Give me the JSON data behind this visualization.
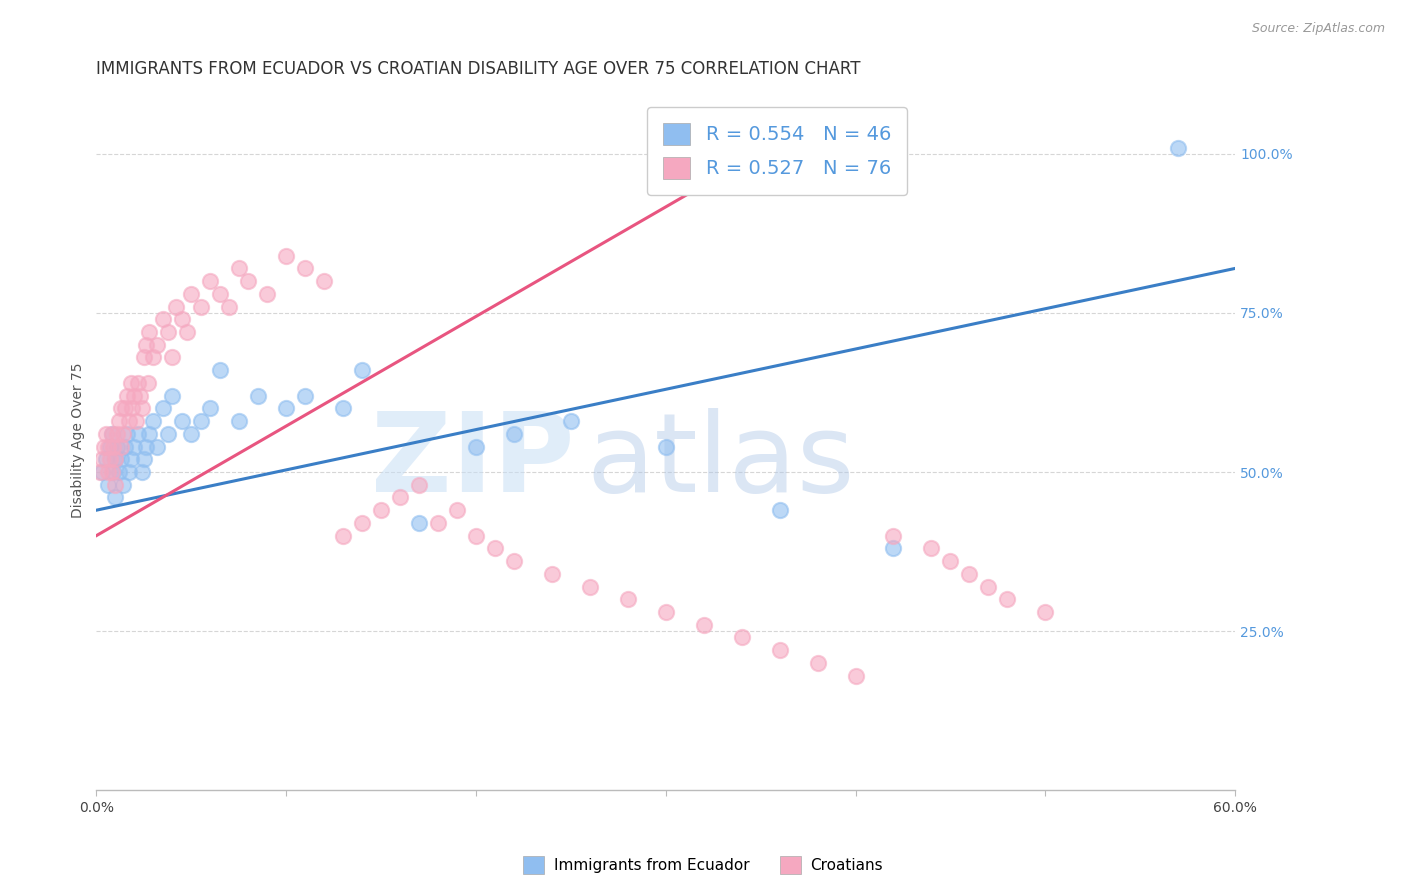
{
  "title": "IMMIGRANTS FROM ECUADOR VS CROATIAN DISABILITY AGE OVER 75 CORRELATION CHART",
  "source": "Source: ZipAtlas.com",
  "ylabel_label": "Disability Age Over 75",
  "x_min": 0.0,
  "x_max": 0.6,
  "y_min": 0.0,
  "y_max": 1.1,
  "x_ticks": [
    0.0,
    0.1,
    0.2,
    0.3,
    0.4,
    0.5,
    0.6
  ],
  "x_tick_labels": [
    "0.0%",
    "",
    "",
    "",
    "",
    "",
    "60.0%"
  ],
  "y_tick_labels": [
    "25.0%",
    "50.0%",
    "75.0%",
    "100.0%"
  ],
  "y_ticks": [
    0.25,
    0.5,
    0.75,
    1.0
  ],
  "blue_color": "#90BEF0",
  "pink_color": "#F5A8C0",
  "blue_line_color": "#3A7EC6",
  "pink_line_color": "#E85580",
  "R_blue": 0.554,
  "N_blue": 46,
  "R_pink": 0.527,
  "N_pink": 76,
  "legend_label_blue": "Immigrants from Ecuador",
  "legend_label_pink": "Croatians",
  "watermark_zip": "ZIP",
  "watermark_atlas": "atlas",
  "blue_trend_x0": 0.0,
  "blue_trend_x1": 0.6,
  "blue_trend_y0": 0.44,
  "blue_trend_y1": 0.82,
  "pink_trend_x0": 0.0,
  "pink_trend_x1": 0.36,
  "pink_trend_y0": 0.4,
  "pink_trend_y1": 1.02,
  "blue_scatter_x": [
    0.003,
    0.005,
    0.006,
    0.007,
    0.008,
    0.009,
    0.01,
    0.01,
    0.011,
    0.012,
    0.013,
    0.014,
    0.015,
    0.016,
    0.017,
    0.018,
    0.02,
    0.022,
    0.024,
    0.025,
    0.026,
    0.028,
    0.03,
    0.032,
    0.035,
    0.038,
    0.04,
    0.045,
    0.05,
    0.055,
    0.06,
    0.065,
    0.075,
    0.085,
    0.1,
    0.11,
    0.13,
    0.14,
    0.17,
    0.2,
    0.22,
    0.25,
    0.3,
    0.36,
    0.42,
    0.57
  ],
  "blue_scatter_y": [
    0.5,
    0.52,
    0.48,
    0.54,
    0.56,
    0.5,
    0.52,
    0.46,
    0.54,
    0.5,
    0.52,
    0.48,
    0.54,
    0.56,
    0.5,
    0.52,
    0.54,
    0.56,
    0.5,
    0.52,
    0.54,
    0.56,
    0.58,
    0.54,
    0.6,
    0.56,
    0.62,
    0.58,
    0.56,
    0.58,
    0.6,
    0.66,
    0.58,
    0.62,
    0.6,
    0.62,
    0.6,
    0.66,
    0.42,
    0.54,
    0.56,
    0.58,
    0.54,
    0.44,
    0.38,
    1.01
  ],
  "pink_scatter_x": [
    0.002,
    0.003,
    0.004,
    0.005,
    0.006,
    0.006,
    0.007,
    0.008,
    0.008,
    0.009,
    0.01,
    0.01,
    0.011,
    0.012,
    0.013,
    0.013,
    0.014,
    0.015,
    0.016,
    0.017,
    0.018,
    0.019,
    0.02,
    0.021,
    0.022,
    0.023,
    0.024,
    0.025,
    0.026,
    0.027,
    0.028,
    0.03,
    0.032,
    0.035,
    0.038,
    0.04,
    0.042,
    0.045,
    0.048,
    0.05,
    0.055,
    0.06,
    0.065,
    0.07,
    0.075,
    0.08,
    0.09,
    0.1,
    0.11,
    0.12,
    0.13,
    0.14,
    0.15,
    0.16,
    0.17,
    0.18,
    0.19,
    0.2,
    0.21,
    0.22,
    0.24,
    0.26,
    0.28,
    0.3,
    0.32,
    0.34,
    0.36,
    0.38,
    0.4,
    0.42,
    0.44,
    0.45,
    0.46,
    0.47,
    0.48,
    0.5
  ],
  "pink_scatter_y": [
    0.5,
    0.52,
    0.54,
    0.56,
    0.5,
    0.54,
    0.52,
    0.56,
    0.5,
    0.54,
    0.52,
    0.48,
    0.56,
    0.58,
    0.54,
    0.6,
    0.56,
    0.6,
    0.62,
    0.58,
    0.64,
    0.6,
    0.62,
    0.58,
    0.64,
    0.62,
    0.6,
    0.68,
    0.7,
    0.64,
    0.72,
    0.68,
    0.7,
    0.74,
    0.72,
    0.68,
    0.76,
    0.74,
    0.72,
    0.78,
    0.76,
    0.8,
    0.78,
    0.76,
    0.82,
    0.8,
    0.78,
    0.84,
    0.82,
    0.8,
    0.4,
    0.42,
    0.44,
    0.46,
    0.48,
    0.42,
    0.44,
    0.4,
    0.38,
    0.36,
    0.34,
    0.32,
    0.3,
    0.28,
    0.26,
    0.24,
    0.22,
    0.2,
    0.18,
    0.4,
    0.38,
    0.36,
    0.34,
    0.32,
    0.3,
    0.28
  ],
  "background_color": "#ffffff",
  "grid_color": "#cccccc",
  "title_fontsize": 12,
  "axis_label_fontsize": 10,
  "tick_color_y": "#5599DD",
  "tick_color_x": "#444444"
}
